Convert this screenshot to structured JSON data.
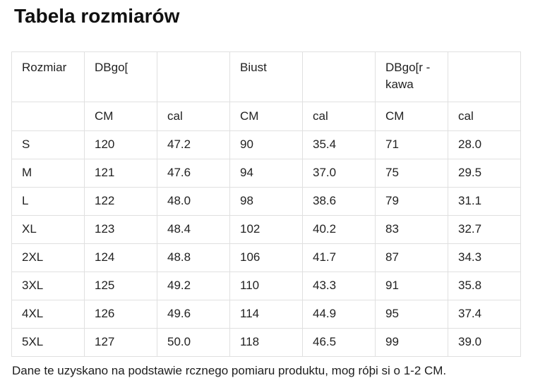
{
  "page": {
    "title": "Tabela rozmiarów",
    "footer_note": "Dane te uzyskano na podstawie rcznego pomiaru produktu, mog róþi si o 1-2 CM."
  },
  "size_table": {
    "header_row_1": [
      "Rozmiar",
      "DBgo[",
      "",
      "Biust",
      "",
      "DBgo[r - kawa",
      ""
    ],
    "header_row_2": [
      "",
      "CM",
      "cal",
      "CM",
      "cal",
      "CM",
      "cal"
    ],
    "rows": [
      [
        "S",
        "120",
        "47.2",
        "90",
        "35.4",
        "71",
        "28.0"
      ],
      [
        "M",
        "121",
        "47.6",
        "94",
        "37.0",
        "75",
        "29.5"
      ],
      [
        "L",
        "122",
        "48.0",
        "98",
        "38.6",
        "79",
        "31.1"
      ],
      [
        "XL",
        "123",
        "48.4",
        "102",
        "40.2",
        "83",
        "32.7"
      ],
      [
        "2XL",
        "124",
        "48.8",
        "106",
        "41.7",
        "87",
        "34.3"
      ],
      [
        "3XL",
        "125",
        "49.2",
        "110",
        "43.3",
        "91",
        "35.8"
      ],
      [
        "4XL",
        "126",
        "49.6",
        "114",
        "44.9",
        "95",
        "37.4"
      ],
      [
        "5XL",
        "127",
        "50.0",
        "118",
        "46.5",
        "99",
        "39.0"
      ]
    ]
  },
  "colors": {
    "border": "#e0e0e0",
    "text": "#222222",
    "title": "#111111"
  }
}
